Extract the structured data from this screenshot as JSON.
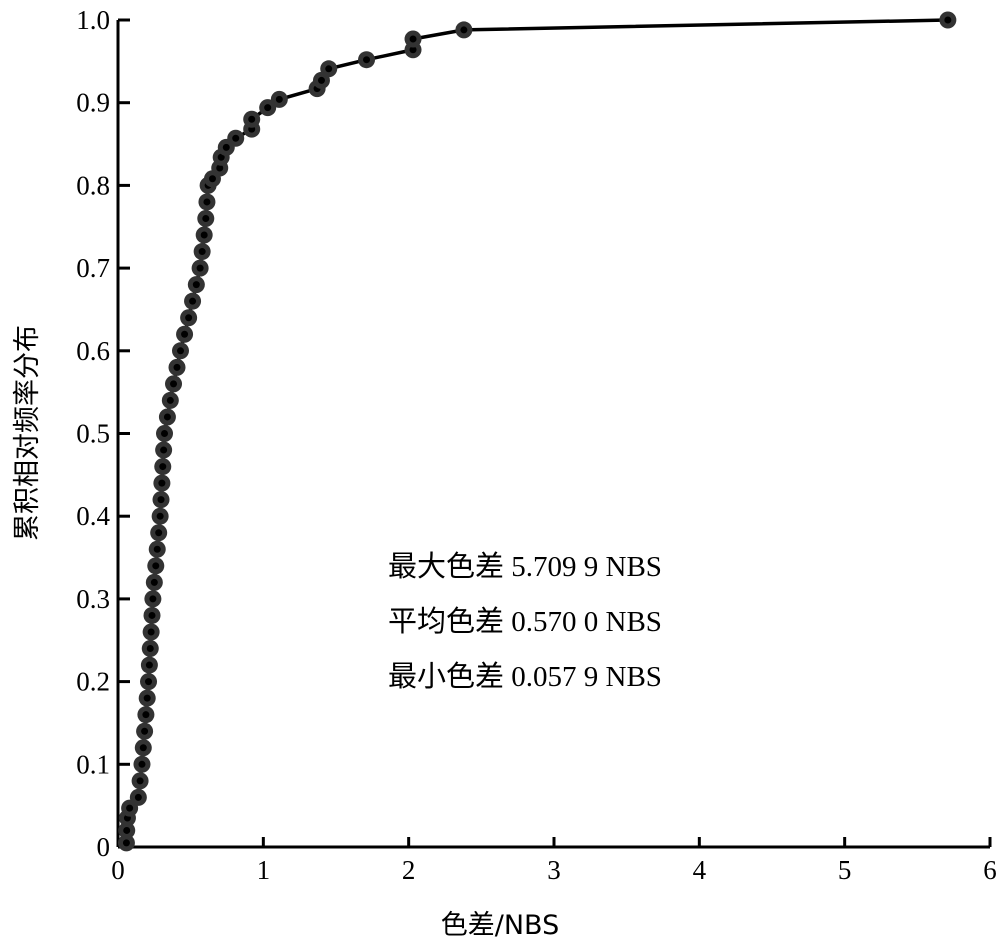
{
  "chart_data": {
    "type": "line",
    "title": "",
    "xlabel": "色差/NBS",
    "ylabel": "累积相对频率分布",
    "xlim": [
      0,
      6
    ],
    "ylim": [
      0,
      1.0
    ],
    "xticks": [
      "0",
      "1",
      "2",
      "3",
      "4",
      "5",
      "6"
    ],
    "yticks": [
      "0",
      "0.1",
      "0.2",
      "0.3",
      "0.4",
      "0.5",
      "0.6",
      "0.7",
      "0.8",
      "0.9",
      "1.0"
    ],
    "grid": false,
    "legend": "none",
    "line_color": "#000000",
    "marker_color": "#333333",
    "annotations": [
      "最大色差 5.709 9 NBS",
      "平均色差 0.570 0 NBS",
      "最小色差 0.057 9 NBS"
    ],
    "points": [
      [
        0.058,
        0.005
      ],
      [
        0.06,
        0.02
      ],
      [
        0.065,
        0.035
      ],
      [
        0.08,
        0.047
      ],
      [
        0.14,
        0.06
      ],
      [
        0.152,
        0.08
      ],
      [
        0.165,
        0.1
      ],
      [
        0.174,
        0.12
      ],
      [
        0.183,
        0.14
      ],
      [
        0.192,
        0.16
      ],
      [
        0.201,
        0.18
      ],
      [
        0.21,
        0.2
      ],
      [
        0.216,
        0.22
      ],
      [
        0.222,
        0.24
      ],
      [
        0.228,
        0.26
      ],
      [
        0.234,
        0.28
      ],
      [
        0.24,
        0.3
      ],
      [
        0.25,
        0.32
      ],
      [
        0.26,
        0.34
      ],
      [
        0.27,
        0.36
      ],
      [
        0.28,
        0.38
      ],
      [
        0.29,
        0.4
      ],
      [
        0.296,
        0.42
      ],
      [
        0.302,
        0.44
      ],
      [
        0.308,
        0.46
      ],
      [
        0.314,
        0.48
      ],
      [
        0.32,
        0.5
      ],
      [
        0.34,
        0.52
      ],
      [
        0.36,
        0.54
      ],
      [
        0.382,
        0.56
      ],
      [
        0.406,
        0.58
      ],
      [
        0.43,
        0.6
      ],
      [
        0.458,
        0.62
      ],
      [
        0.486,
        0.64
      ],
      [
        0.513,
        0.66
      ],
      [
        0.539,
        0.68
      ],
      [
        0.565,
        0.7
      ],
      [
        0.579,
        0.72
      ],
      [
        0.593,
        0.74
      ],
      [
        0.604,
        0.76
      ],
      [
        0.612,
        0.78
      ],
      [
        0.62,
        0.8
      ],
      [
        0.65,
        0.808
      ],
      [
        0.7,
        0.821
      ],
      [
        0.71,
        0.834
      ],
      [
        0.745,
        0.846
      ],
      [
        0.81,
        0.857
      ],
      [
        0.92,
        0.868
      ],
      [
        0.92,
        0.88
      ],
      [
        1.03,
        0.894
      ],
      [
        1.11,
        0.904
      ],
      [
        1.37,
        0.917
      ],
      [
        1.4,
        0.927
      ],
      [
        1.45,
        0.941
      ],
      [
        1.71,
        0.952
      ],
      [
        2.03,
        0.964
      ],
      [
        2.03,
        0.977
      ],
      [
        2.38,
        0.988
      ],
      [
        5.71,
        1.0
      ]
    ]
  }
}
